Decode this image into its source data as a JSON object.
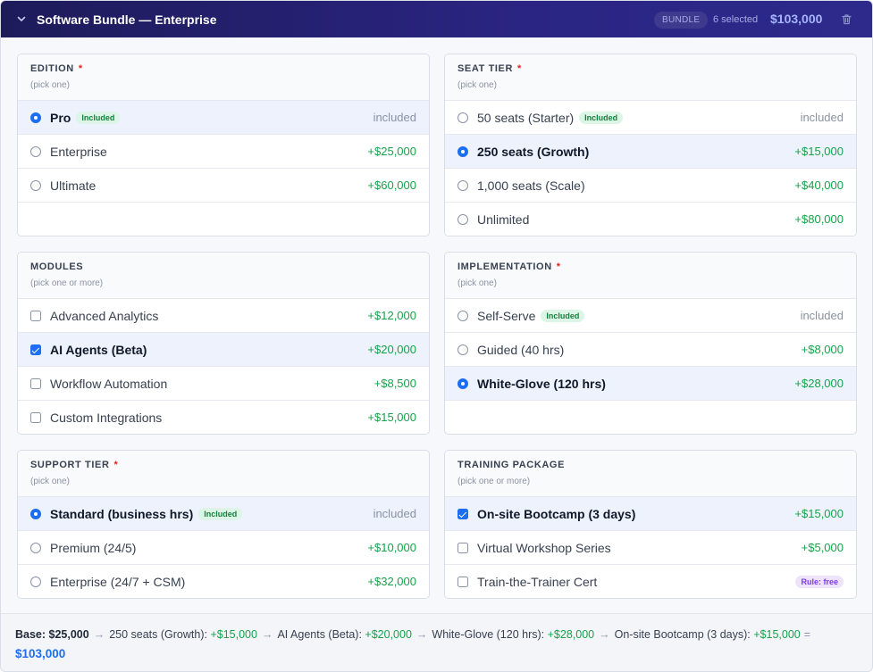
{
  "header": {
    "title": "Software Bundle — Enterprise",
    "badge": "BUNDLE",
    "selected_count": "6 selected",
    "total": "$103,000",
    "icons": {
      "collapse": "chevron-down-icon",
      "delete": "trash-icon"
    }
  },
  "groups": [
    {
      "id": "edition",
      "title": "EDITION",
      "required": "*",
      "hint": "(pick one)",
      "type": "radio",
      "options": [
        {
          "label": "Pro",
          "tag": "Included",
          "price": "included",
          "selected": true
        },
        {
          "label": "Enterprise",
          "tag": "",
          "price": "+$25,000",
          "selected": false
        },
        {
          "label": "Ultimate",
          "tag": "",
          "price": "+$60,000",
          "selected": false
        }
      ]
    },
    {
      "id": "seat-tier",
      "title": "SEAT TIER",
      "required": "*",
      "hint": "(pick one)",
      "type": "radio",
      "options": [
        {
          "label": "50 seats (Starter)",
          "tag": "Included",
          "price": "included",
          "selected": false
        },
        {
          "label": "250 seats (Growth)",
          "tag": "",
          "price": "+$15,000",
          "selected": true
        },
        {
          "label": "1,000 seats (Scale)",
          "tag": "",
          "price": "+$40,000",
          "selected": false
        },
        {
          "label": "Unlimited",
          "tag": "",
          "price": "+$80,000",
          "selected": false
        }
      ]
    },
    {
      "id": "modules",
      "title": "MODULES",
      "required": "",
      "hint": "(pick one or more)",
      "type": "checkbox",
      "options": [
        {
          "label": "Advanced Analytics",
          "tag": "",
          "price": "+$12,000",
          "selected": false
        },
        {
          "label": "AI Agents (Beta)",
          "tag": "",
          "price": "+$20,000",
          "selected": true
        },
        {
          "label": "Workflow Automation",
          "tag": "",
          "price": "+$8,500",
          "selected": false
        },
        {
          "label": "Custom Integrations",
          "tag": "",
          "price": "+$15,000",
          "selected": false
        }
      ]
    },
    {
      "id": "implementation",
      "title": "IMPLEMENTATION",
      "required": "*",
      "hint": "(pick one)",
      "type": "radio",
      "options": [
        {
          "label": "Self-Serve",
          "tag": "Included",
          "price": "included",
          "selected": false
        },
        {
          "label": "Guided (40 hrs)",
          "tag": "",
          "price": "+$8,000",
          "selected": false
        },
        {
          "label": "White-Glove (120 hrs)",
          "tag": "",
          "price": "+$28,000",
          "selected": true
        }
      ]
    },
    {
      "id": "support-tier",
      "title": "SUPPORT TIER",
      "required": "*",
      "hint": "(pick one)",
      "type": "radio",
      "options": [
        {
          "label": "Standard (business hrs)",
          "tag": "Included",
          "price": "included",
          "selected": true
        },
        {
          "label": "Premium (24/5)",
          "tag": "",
          "price": "+$10,000",
          "selected": false
        },
        {
          "label": "Enterprise (24/7 + CSM)",
          "tag": "",
          "price": "+$32,000",
          "selected": false
        }
      ]
    },
    {
      "id": "training-package",
      "title": "TRAINING PACKAGE",
      "required": "",
      "hint": "(pick one or more)",
      "type": "checkbox",
      "options": [
        {
          "label": "On-site Bootcamp (3 days)",
          "tag": "",
          "price": "+$15,000",
          "selected": true
        },
        {
          "label": "Virtual Workshop Series",
          "tag": "",
          "price": "+$5,000",
          "selected": false
        },
        {
          "label": "Train-the-Trainer Cert",
          "tag": "",
          "price": "Rule: free",
          "price_is_pill": true,
          "selected": false
        }
      ]
    }
  ],
  "summary": {
    "base_label": "Base: $25,000",
    "steps": [
      {
        "label": "250 seats (Growth):",
        "amount": "+$15,000"
      },
      {
        "label": "AI Agents (Beta):",
        "amount": "+$20,000"
      },
      {
        "label": "White-Glove (120 hrs):",
        "amount": "+$28,000"
      },
      {
        "label": "On-site Bootcamp (3 days):",
        "amount": "+$15,000"
      }
    ],
    "arrow": "→",
    "equals": "=",
    "total": "$103,000"
  },
  "colors": {
    "header_bg": "#2a2582",
    "accent": "#1d6ef0",
    "price_green": "#16a34a",
    "required_red": "#dc2626",
    "rule_purple": "#7c3aed"
  }
}
